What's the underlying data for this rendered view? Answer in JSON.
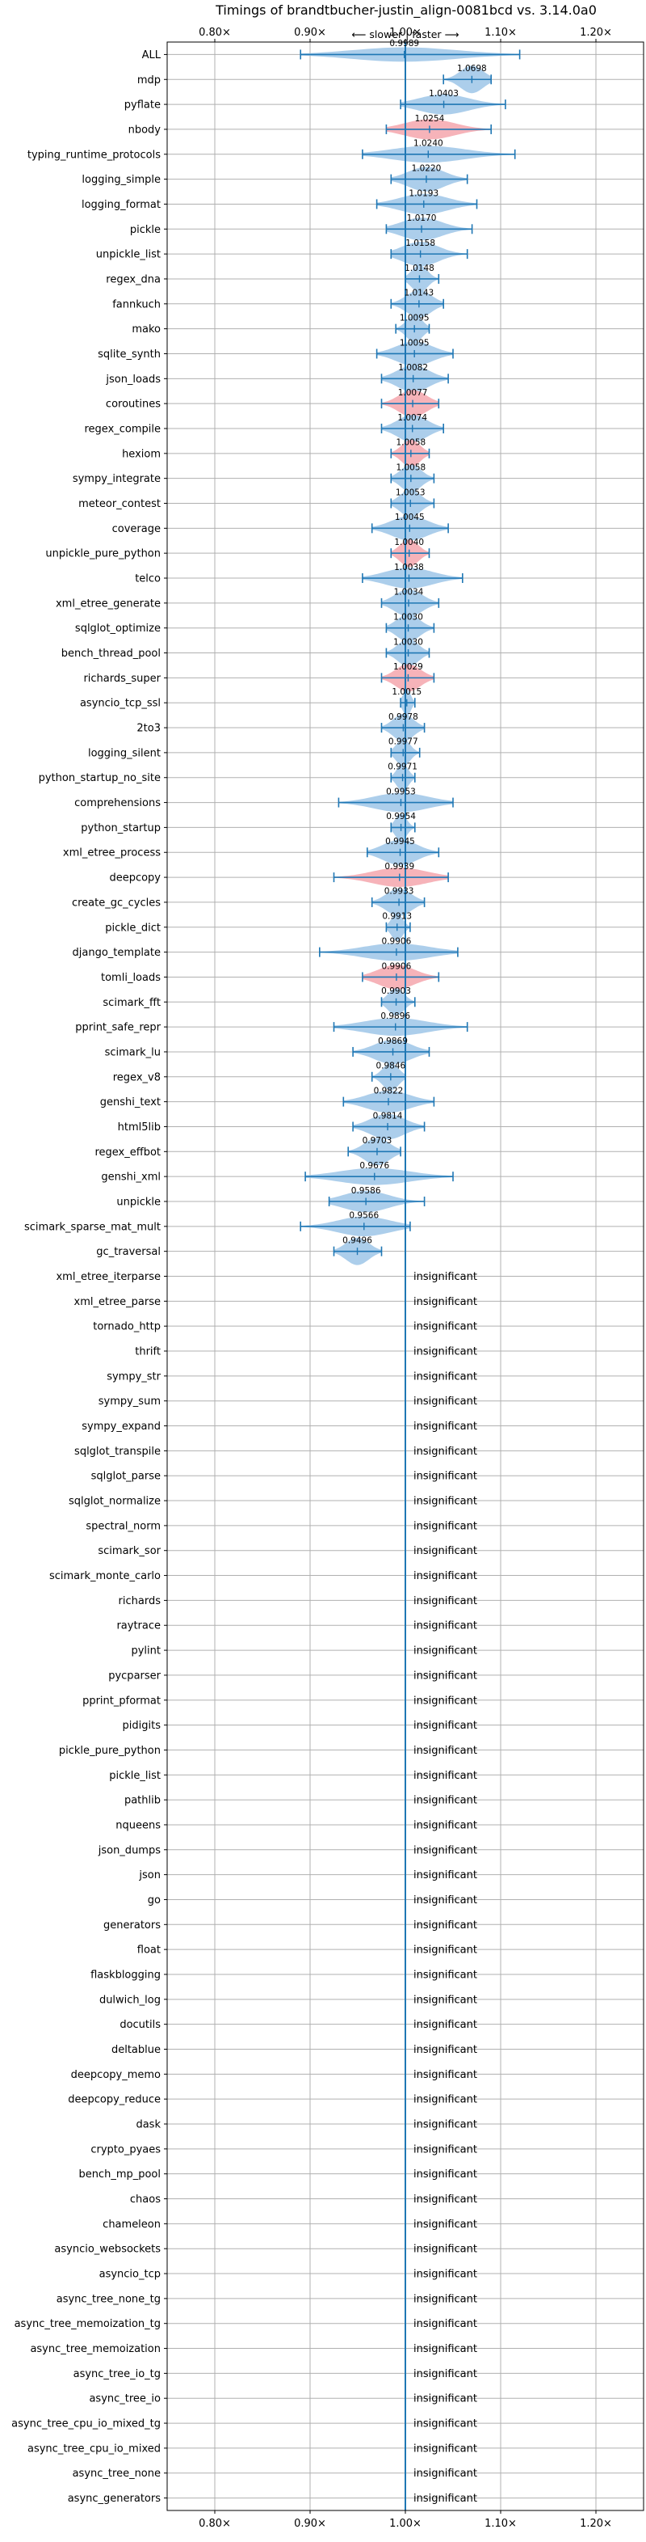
{
  "chart_data": {
    "type": "violin",
    "title": "Timings of brandtbucher-justin_align-0081bcd vs. 3.14.0a0",
    "direction_label": "⟵ slower | faster ⟶",
    "xlim": [
      0.75,
      1.25
    ],
    "xticks": [
      0.8,
      0.9,
      1.0,
      1.1,
      1.2
    ],
    "xtick_labels": [
      "0.80×",
      "0.90×",
      "1.00×",
      "1.10×",
      "1.20×"
    ],
    "grid": true,
    "colors": {
      "faster": "#9ec5e8",
      "slower": "#f4a6ad",
      "reference_line": "#1f77b4",
      "whisker": "#1f77b4",
      "grid": "#b0b0b0"
    },
    "insignificant_text": "insignificant",
    "benchmarks": [
      {
        "name": "ALL",
        "value": 0.9989,
        "low": 0.89,
        "high": 1.12,
        "color": "faster",
        "label": "0.9989"
      },
      {
        "name": "mdp",
        "value": 1.0698,
        "low": 1.04,
        "high": 1.09,
        "color": "faster",
        "label": "1.0698"
      },
      {
        "name": "pyflate",
        "value": 1.0403,
        "low": 0.995,
        "high": 1.105,
        "color": "faster",
        "label": "1.0403"
      },
      {
        "name": "nbody",
        "value": 1.0254,
        "low": 0.98,
        "high": 1.09,
        "color": "slower",
        "label": "1.0254"
      },
      {
        "name": "typing_runtime_protocols",
        "value": 1.024,
        "low": 0.955,
        "high": 1.115,
        "color": "faster",
        "label": "1.0240"
      },
      {
        "name": "logging_simple",
        "value": 1.022,
        "low": 0.985,
        "high": 1.065,
        "color": "faster",
        "label": "1.0220"
      },
      {
        "name": "logging_format",
        "value": 1.0193,
        "low": 0.97,
        "high": 1.075,
        "color": "faster",
        "label": "1.0193"
      },
      {
        "name": "pickle",
        "value": 1.017,
        "low": 0.98,
        "high": 1.07,
        "color": "faster",
        "label": "1.0170"
      },
      {
        "name": "unpickle_list",
        "value": 1.0158,
        "low": 0.985,
        "high": 1.065,
        "color": "faster",
        "label": "1.0158"
      },
      {
        "name": "regex_dna",
        "value": 1.0148,
        "low": 1.0,
        "high": 1.035,
        "color": "faster",
        "label": "1.0148"
      },
      {
        "name": "fannkuch",
        "value": 1.0143,
        "low": 0.985,
        "high": 1.04,
        "color": "faster",
        "label": "1.0143"
      },
      {
        "name": "mako",
        "value": 1.0095,
        "low": 0.99,
        "high": 1.025,
        "color": "faster",
        "label": "1.0095"
      },
      {
        "name": "sqlite_synth",
        "value": 1.0095,
        "low": 0.97,
        "high": 1.05,
        "color": "faster",
        "label": "1.0095"
      },
      {
        "name": "json_loads",
        "value": 1.0082,
        "low": 0.975,
        "high": 1.045,
        "color": "faster",
        "label": "1.0082"
      },
      {
        "name": "coroutines",
        "value": 1.0077,
        "low": 0.975,
        "high": 1.035,
        "color": "slower",
        "label": "1.0077"
      },
      {
        "name": "regex_compile",
        "value": 1.0074,
        "low": 0.975,
        "high": 1.04,
        "color": "faster",
        "label": "1.0074"
      },
      {
        "name": "hexiom",
        "value": 1.0058,
        "low": 0.985,
        "high": 1.025,
        "color": "slower",
        "label": "1.0058"
      },
      {
        "name": "sympy_integrate",
        "value": 1.0058,
        "low": 0.985,
        "high": 1.03,
        "color": "faster",
        "label": "1.0058"
      },
      {
        "name": "meteor_contest",
        "value": 1.0053,
        "low": 0.985,
        "high": 1.03,
        "color": "faster",
        "label": "1.0053"
      },
      {
        "name": "coverage",
        "value": 1.0045,
        "low": 0.965,
        "high": 1.045,
        "color": "faster",
        "label": "1.0045"
      },
      {
        "name": "unpickle_pure_python",
        "value": 1.004,
        "low": 0.985,
        "high": 1.025,
        "color": "slower",
        "label": "1.0040"
      },
      {
        "name": "telco",
        "value": 1.0038,
        "low": 0.955,
        "high": 1.06,
        "color": "faster",
        "label": "1.0038"
      },
      {
        "name": "xml_etree_generate",
        "value": 1.0034,
        "low": 0.975,
        "high": 1.035,
        "color": "faster",
        "label": "1.0034"
      },
      {
        "name": "sqlglot_optimize",
        "value": 1.003,
        "low": 0.98,
        "high": 1.03,
        "color": "faster",
        "label": "1.0030"
      },
      {
        "name": "bench_thread_pool",
        "value": 1.003,
        "low": 0.98,
        "high": 1.025,
        "color": "faster",
        "label": "1.0030"
      },
      {
        "name": "richards_super",
        "value": 1.0029,
        "low": 0.975,
        "high": 1.03,
        "color": "slower",
        "label": "1.0029"
      },
      {
        "name": "asyncio_tcp_ssl",
        "value": 1.0015,
        "low": 0.995,
        "high": 1.01,
        "color": "faster",
        "label": "1.0015"
      },
      {
        "name": "2to3",
        "value": 0.9978,
        "low": 0.975,
        "high": 1.02,
        "color": "faster",
        "label": "0.9978"
      },
      {
        "name": "logging_silent",
        "value": 0.9977,
        "low": 0.985,
        "high": 1.015,
        "color": "faster",
        "label": "0.9977"
      },
      {
        "name": "python_startup_no_site",
        "value": 0.9971,
        "low": 0.985,
        "high": 1.01,
        "color": "faster",
        "label": "0.9971"
      },
      {
        "name": "comprehensions",
        "value": 0.9953,
        "low": 0.93,
        "high": 1.05,
        "color": "faster",
        "label": "0.9953"
      },
      {
        "name": "python_startup",
        "value": 0.9954,
        "low": 0.985,
        "high": 1.01,
        "color": "faster",
        "label": "0.9954"
      },
      {
        "name": "xml_etree_process",
        "value": 0.9945,
        "low": 0.96,
        "high": 1.035,
        "color": "faster",
        "label": "0.9945"
      },
      {
        "name": "deepcopy",
        "value": 0.9939,
        "low": 0.925,
        "high": 1.045,
        "color": "slower",
        "label": "0.9939"
      },
      {
        "name": "create_gc_cycles",
        "value": 0.9933,
        "low": 0.965,
        "high": 1.02,
        "color": "faster",
        "label": "0.9933"
      },
      {
        "name": "pickle_dict",
        "value": 0.9913,
        "low": 0.98,
        "high": 1.005,
        "color": "faster",
        "label": "0.9913"
      },
      {
        "name": "django_template",
        "value": 0.9906,
        "low": 0.91,
        "high": 1.055,
        "color": "faster",
        "label": "0.9906"
      },
      {
        "name": "tomli_loads",
        "value": 0.9906,
        "low": 0.955,
        "high": 1.035,
        "color": "slower",
        "label": "0.9906"
      },
      {
        "name": "scimark_fft",
        "value": 0.9903,
        "low": 0.975,
        "high": 1.01,
        "color": "faster",
        "label": "0.9903"
      },
      {
        "name": "pprint_safe_repr",
        "value": 0.9896,
        "low": 0.925,
        "high": 1.065,
        "color": "faster",
        "label": "0.9896"
      },
      {
        "name": "scimark_lu",
        "value": 0.9869,
        "low": 0.945,
        "high": 1.025,
        "color": "faster",
        "label": "0.9869"
      },
      {
        "name": "regex_v8",
        "value": 0.9846,
        "low": 0.965,
        "high": 1.0,
        "color": "faster",
        "label": "0.9846"
      },
      {
        "name": "genshi_text",
        "value": 0.9822,
        "low": 0.935,
        "high": 1.03,
        "color": "faster",
        "label": "0.9822"
      },
      {
        "name": "html5lib",
        "value": 0.9814,
        "low": 0.945,
        "high": 1.02,
        "color": "faster",
        "label": "0.9814"
      },
      {
        "name": "regex_effbot",
        "value": 0.9703,
        "low": 0.94,
        "high": 0.995,
        "color": "faster",
        "label": "0.9703"
      },
      {
        "name": "genshi_xml",
        "value": 0.9676,
        "low": 0.895,
        "high": 1.05,
        "color": "faster",
        "label": "0.9676"
      },
      {
        "name": "unpickle",
        "value": 0.9586,
        "low": 0.92,
        "high": 1.02,
        "color": "faster",
        "label": "0.9586"
      },
      {
        "name": "scimark_sparse_mat_mult",
        "value": 0.9566,
        "low": 0.89,
        "high": 1.005,
        "color": "faster",
        "label": "0.9566"
      },
      {
        "name": "gc_traversal",
        "value": 0.9496,
        "low": 0.925,
        "high": 0.975,
        "color": "faster",
        "label": "0.9496"
      }
    ],
    "insignificant": [
      "xml_etree_iterparse",
      "xml_etree_parse",
      "tornado_http",
      "thrift",
      "sympy_str",
      "sympy_sum",
      "sympy_expand",
      "sqlglot_transpile",
      "sqlglot_parse",
      "sqlglot_normalize",
      "spectral_norm",
      "scimark_sor",
      "scimark_monte_carlo",
      "richards",
      "raytrace",
      "pylint",
      "pycparser",
      "pprint_pformat",
      "pidigits",
      "pickle_pure_python",
      "pickle_list",
      "pathlib",
      "nqueens",
      "json_dumps",
      "json",
      "go",
      "generators",
      "float",
      "flaskblogging",
      "dulwich_log",
      "docutils",
      "deltablue",
      "deepcopy_memo",
      "deepcopy_reduce",
      "dask",
      "crypto_pyaes",
      "bench_mp_pool",
      "chaos",
      "chameleon",
      "asyncio_websockets",
      "asyncio_tcp",
      "async_tree_none_tg",
      "async_tree_memoization_tg",
      "async_tree_memoization",
      "async_tree_io_tg",
      "async_tree_io",
      "async_tree_cpu_io_mixed_tg",
      "async_tree_cpu_io_mixed",
      "async_tree_none",
      "async_generators"
    ]
  }
}
